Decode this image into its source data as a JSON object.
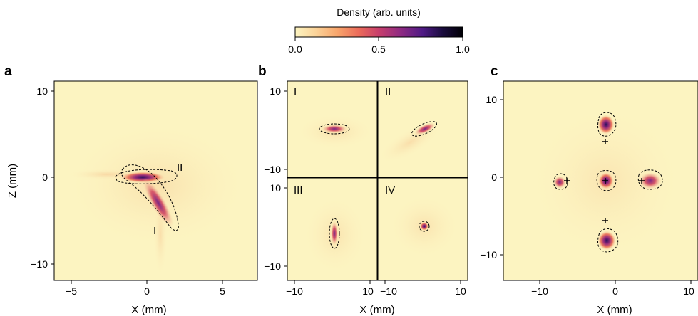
{
  "colorbar": {
    "title": "Density (arb. units)",
    "ticks": [
      "0.0",
      "0.5",
      "1.0"
    ],
    "colormap": [
      "#fcf4c1",
      "#fbd49a",
      "#f8a66c",
      "#eb6b5a",
      "#c73e6c",
      "#8e2a82",
      "#4f1a85",
      "#1a0c3e",
      "#000004"
    ]
  },
  "chart_data": [
    {
      "panel": "a",
      "type": "heatmap",
      "xlabel": "X (mm)",
      "ylabel": "Z (mm)",
      "xlim": [
        -6,
        6
      ],
      "ylim": [
        -11,
        11
      ],
      "xticks": [
        "−5",
        "0",
        "5"
      ],
      "yticks": [
        "−10",
        "0",
        "10"
      ],
      "region_labels": [
        "I",
        "II"
      ]
    },
    {
      "panel": "b",
      "type": "heatmap",
      "xlabel": "X (mm)",
      "subpanels": [
        "I",
        "II",
        "III",
        "IV"
      ],
      "xticks": [
        "−10",
        "10",
        "−10",
        "10"
      ],
      "yticks": [
        "10",
        "−10",
        "10",
        "−10"
      ]
    },
    {
      "panel": "c",
      "type": "heatmap",
      "xlabel": "X (mm)",
      "xlim": [
        -13,
        13
      ],
      "ylim": [
        -13,
        13
      ],
      "xticks": [
        "−10",
        "0",
        "10"
      ],
      "yticks": [
        "10",
        "0",
        "−10"
      ],
      "markers": "+"
    }
  ]
}
